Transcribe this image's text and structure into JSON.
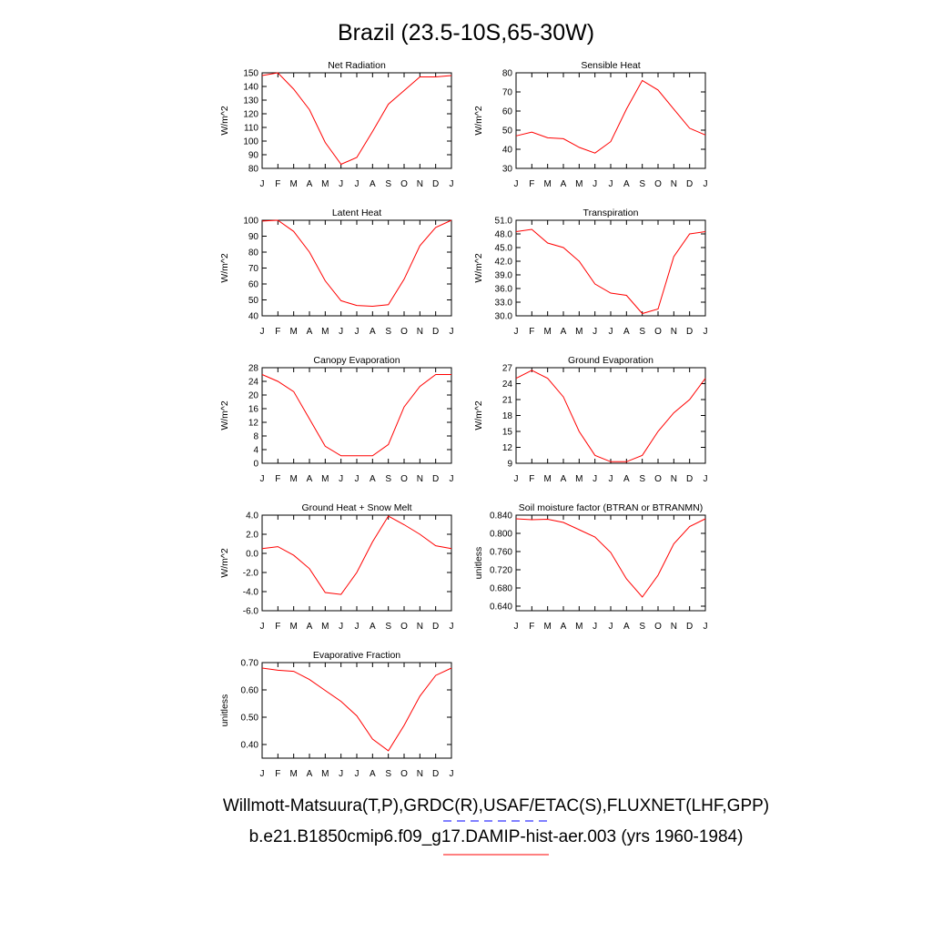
{
  "figure_title": "Brazil (23.5-10S,65-30W)",
  "captions": {
    "obs": "Willmott-Matsuura(T,P),GRDC(R),USAF/ETAC(S),FLUXNET(LHF,GPP)",
    "model": "b.e21.B1850cmip6.f09_g17.DAMIP-hist-aer.003 (yrs 1960-1984)"
  },
  "colors": {
    "model_line": "#ff0000",
    "obs_line": "#0000ff",
    "axes": "#000000"
  },
  "chart_data": [
    {
      "type": "line",
      "title": "Net Radiation",
      "ylabel": "W/m^2",
      "categories": [
        "J",
        "F",
        "M",
        "A",
        "M",
        "J",
        "J",
        "A",
        "S",
        "O",
        "N",
        "D",
        "J"
      ],
      "ylim": [
        80,
        150
      ],
      "yticks": [
        80,
        90,
        100,
        110,
        120,
        130,
        140,
        150
      ],
      "ytick_labels": [
        "80",
        "90",
        "100",
        "110",
        "120",
        "130",
        "140",
        "150"
      ],
      "values": [
        148,
        150,
        138,
        123,
        99,
        83,
        88,
        107,
        127,
        137,
        147,
        147,
        148
      ]
    },
    {
      "type": "line",
      "title": "Sensible Heat",
      "ylabel": "W/m^2",
      "categories": [
        "J",
        "F",
        "M",
        "A",
        "M",
        "J",
        "J",
        "A",
        "S",
        "O",
        "N",
        "D",
        "J"
      ],
      "ylim": [
        30,
        80
      ],
      "yticks": [
        30,
        40,
        50,
        60,
        70,
        80
      ],
      "ytick_labels": [
        "30",
        "40",
        "50",
        "60",
        "70",
        "80"
      ],
      "values": [
        47,
        49,
        46,
        45.5,
        41,
        38,
        44,
        61,
        76,
        71,
        61,
        51,
        47.5
      ]
    },
    {
      "type": "line",
      "title": "Latent Heat",
      "ylabel": "W/m^2",
      "categories": [
        "J",
        "F",
        "M",
        "A",
        "M",
        "J",
        "J",
        "A",
        "S",
        "O",
        "N",
        "D",
        "J"
      ],
      "ylim": [
        40,
        100
      ],
      "yticks": [
        40,
        50,
        60,
        70,
        80,
        90,
        100
      ],
      "ytick_labels": [
        "40",
        "50",
        "60",
        "70",
        "80",
        "90",
        "100"
      ],
      "values": [
        99.5,
        100,
        93,
        80,
        62,
        49.5,
        46.5,
        46,
        47,
        63,
        84,
        95.5,
        100
      ]
    },
    {
      "type": "line",
      "title": "Transpiration",
      "ylabel": "W/m^2",
      "categories": [
        "J",
        "F",
        "M",
        "A",
        "M",
        "J",
        "J",
        "A",
        "S",
        "O",
        "N",
        "D",
        "J"
      ],
      "ylim": [
        30,
        51
      ],
      "yticks": [
        30,
        33,
        36,
        39,
        42,
        45,
        48,
        51
      ],
      "ytick_labels": [
        "30.0",
        "33.0",
        "36.0",
        "39.0",
        "42.0",
        "45.0",
        "48.0",
        "51.0"
      ],
      "values": [
        48.5,
        49,
        46,
        45,
        42,
        37,
        35,
        34.5,
        30.5,
        31.5,
        43,
        48,
        48.5
      ]
    },
    {
      "type": "line",
      "title": "Canopy Evaporation",
      "ylabel": "W/m^2",
      "categories": [
        "J",
        "F",
        "M",
        "A",
        "M",
        "J",
        "J",
        "A",
        "S",
        "O",
        "N",
        "D",
        "J"
      ],
      "ylim": [
        0,
        28
      ],
      "yticks": [
        0,
        4,
        8,
        12,
        16,
        20,
        24,
        28
      ],
      "ytick_labels": [
        "0",
        "4",
        "8",
        "12",
        "16",
        "20",
        "24",
        "28"
      ],
      "values": [
        26,
        24,
        21,
        13,
        5,
        2.2,
        2.2,
        2.2,
        5.5,
        16.5,
        22.5,
        26,
        26
      ]
    },
    {
      "type": "line",
      "title": "Ground Evaporation",
      "ylabel": "W/m^2",
      "categories": [
        "J",
        "F",
        "M",
        "A",
        "M",
        "J",
        "J",
        "A",
        "S",
        "O",
        "N",
        "D",
        "J"
      ],
      "ylim": [
        9,
        27
      ],
      "yticks": [
        9,
        12,
        15,
        18,
        21,
        24,
        27
      ],
      "ytick_labels": [
        "9",
        "12",
        "15",
        "18",
        "21",
        "24",
        "27"
      ],
      "values": [
        25,
        26.5,
        25,
        21.5,
        15,
        10.5,
        9.3,
        9.3,
        10.5,
        15,
        18.5,
        21,
        25
      ]
    },
    {
      "type": "line",
      "title": "Ground Heat + Snow Melt",
      "ylabel": "W/m^2",
      "categories": [
        "J",
        "F",
        "M",
        "A",
        "M",
        "J",
        "J",
        "A",
        "S",
        "O",
        "N",
        "D",
        "J"
      ],
      "ylim": [
        -6,
        4
      ],
      "yticks": [
        -6,
        -4,
        -2,
        0,
        2,
        4
      ],
      "ytick_labels": [
        "-6.0",
        "-4.0",
        "-2.0",
        "0.0",
        "2.0",
        "4.0"
      ],
      "values": [
        0.5,
        0.7,
        -0.2,
        -1.6,
        -4.1,
        -4.3,
        -2.0,
        1.2,
        3.9,
        3.0,
        2.0,
        0.8,
        0.5
      ]
    },
    {
      "type": "line",
      "title": "Soil moisture factor (BTRAN or BTRANMN)",
      "ylabel": "unitless",
      "categories": [
        "J",
        "F",
        "M",
        "A",
        "M",
        "J",
        "J",
        "A",
        "S",
        "O",
        "N",
        "D",
        "J"
      ],
      "ylim": [
        0.63,
        0.84
      ],
      "yticks": [
        0.64,
        0.68,
        0.72,
        0.76,
        0.8,
        0.84
      ],
      "ytick_labels": [
        "0.640",
        "0.680",
        "0.720",
        "0.760",
        "0.800",
        "0.840"
      ],
      "values": [
        0.832,
        0.83,
        0.831,
        0.824,
        0.808,
        0.792,
        0.758,
        0.7,
        0.66,
        0.708,
        0.777,
        0.815,
        0.832
      ]
    },
    {
      "type": "line",
      "title": "Evaporative Fraction",
      "ylabel": "unitless",
      "categories": [
        "J",
        "F",
        "M",
        "A",
        "M",
        "J",
        "J",
        "A",
        "S",
        "O",
        "N",
        "D",
        "J"
      ],
      "ylim": [
        0.35,
        0.7
      ],
      "yticks": [
        0.4,
        0.5,
        0.6,
        0.7
      ],
      "ytick_labels": [
        "0.40",
        "0.50",
        "0.60",
        "0.70"
      ],
      "values": [
        0.68,
        0.672,
        0.668,
        0.638,
        0.598,
        0.558,
        0.505,
        0.42,
        0.377,
        0.47,
        0.577,
        0.653,
        0.68
      ]
    }
  ]
}
